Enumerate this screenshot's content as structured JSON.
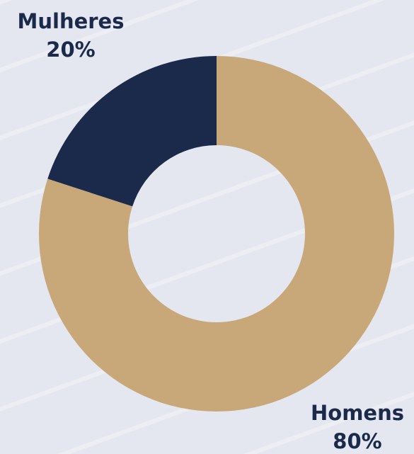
{
  "chart_data": {
    "type": "donut",
    "categories": [
      "Homens",
      "Mulheres"
    ],
    "values": [
      80,
      20
    ],
    "value_labels": [
      "80%",
      "20%"
    ],
    "colors": [
      "#c8a878",
      "#1b2a4a"
    ]
  }
}
